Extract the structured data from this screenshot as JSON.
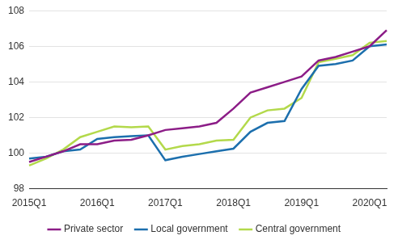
{
  "chart_data": {
    "type": "line",
    "categories": [
      "2015Q1",
      null,
      null,
      null,
      "2016Q1",
      null,
      null,
      null,
      "2017Q1",
      null,
      null,
      null,
      "2018Q1",
      null,
      null,
      null,
      "2019Q1",
      null,
      null,
      null,
      "2020Q1",
      null
    ],
    "series": [
      {
        "name": "Private sector",
        "color": "#8c1d87",
        "values": [
          99.5,
          99.8,
          100.1,
          100.5,
          100.5,
          100.7,
          100.75,
          101.0,
          101.3,
          101.4,
          101.5,
          101.7,
          102.5,
          103.4,
          103.7,
          104.0,
          104.3,
          105.2,
          105.4,
          105.7,
          106.0,
          106.9
        ]
      },
      {
        "name": "Local government",
        "color": "#1c6fad",
        "values": [
          99.7,
          99.8,
          100.1,
          100.2,
          100.8,
          100.9,
          100.95,
          101.0,
          99.6,
          99.8,
          99.95,
          100.1,
          100.25,
          101.2,
          101.7,
          101.8,
          103.6,
          104.9,
          105.0,
          105.2,
          106.0,
          106.1
        ]
      },
      {
        "name": "Central government",
        "color": "#b3d94b",
        "values": [
          99.3,
          99.7,
          100.2,
          100.9,
          101.2,
          101.5,
          101.45,
          101.5,
          100.2,
          100.4,
          100.5,
          100.7,
          100.75,
          102.0,
          102.4,
          102.5,
          103.1,
          105.1,
          105.3,
          105.5,
          106.2,
          106.3
        ]
      }
    ],
    "ylim": [
      98,
      108
    ],
    "yticks": [
      98,
      100,
      102,
      104,
      106,
      108
    ],
    "grid": true,
    "legend": "bottom"
  }
}
